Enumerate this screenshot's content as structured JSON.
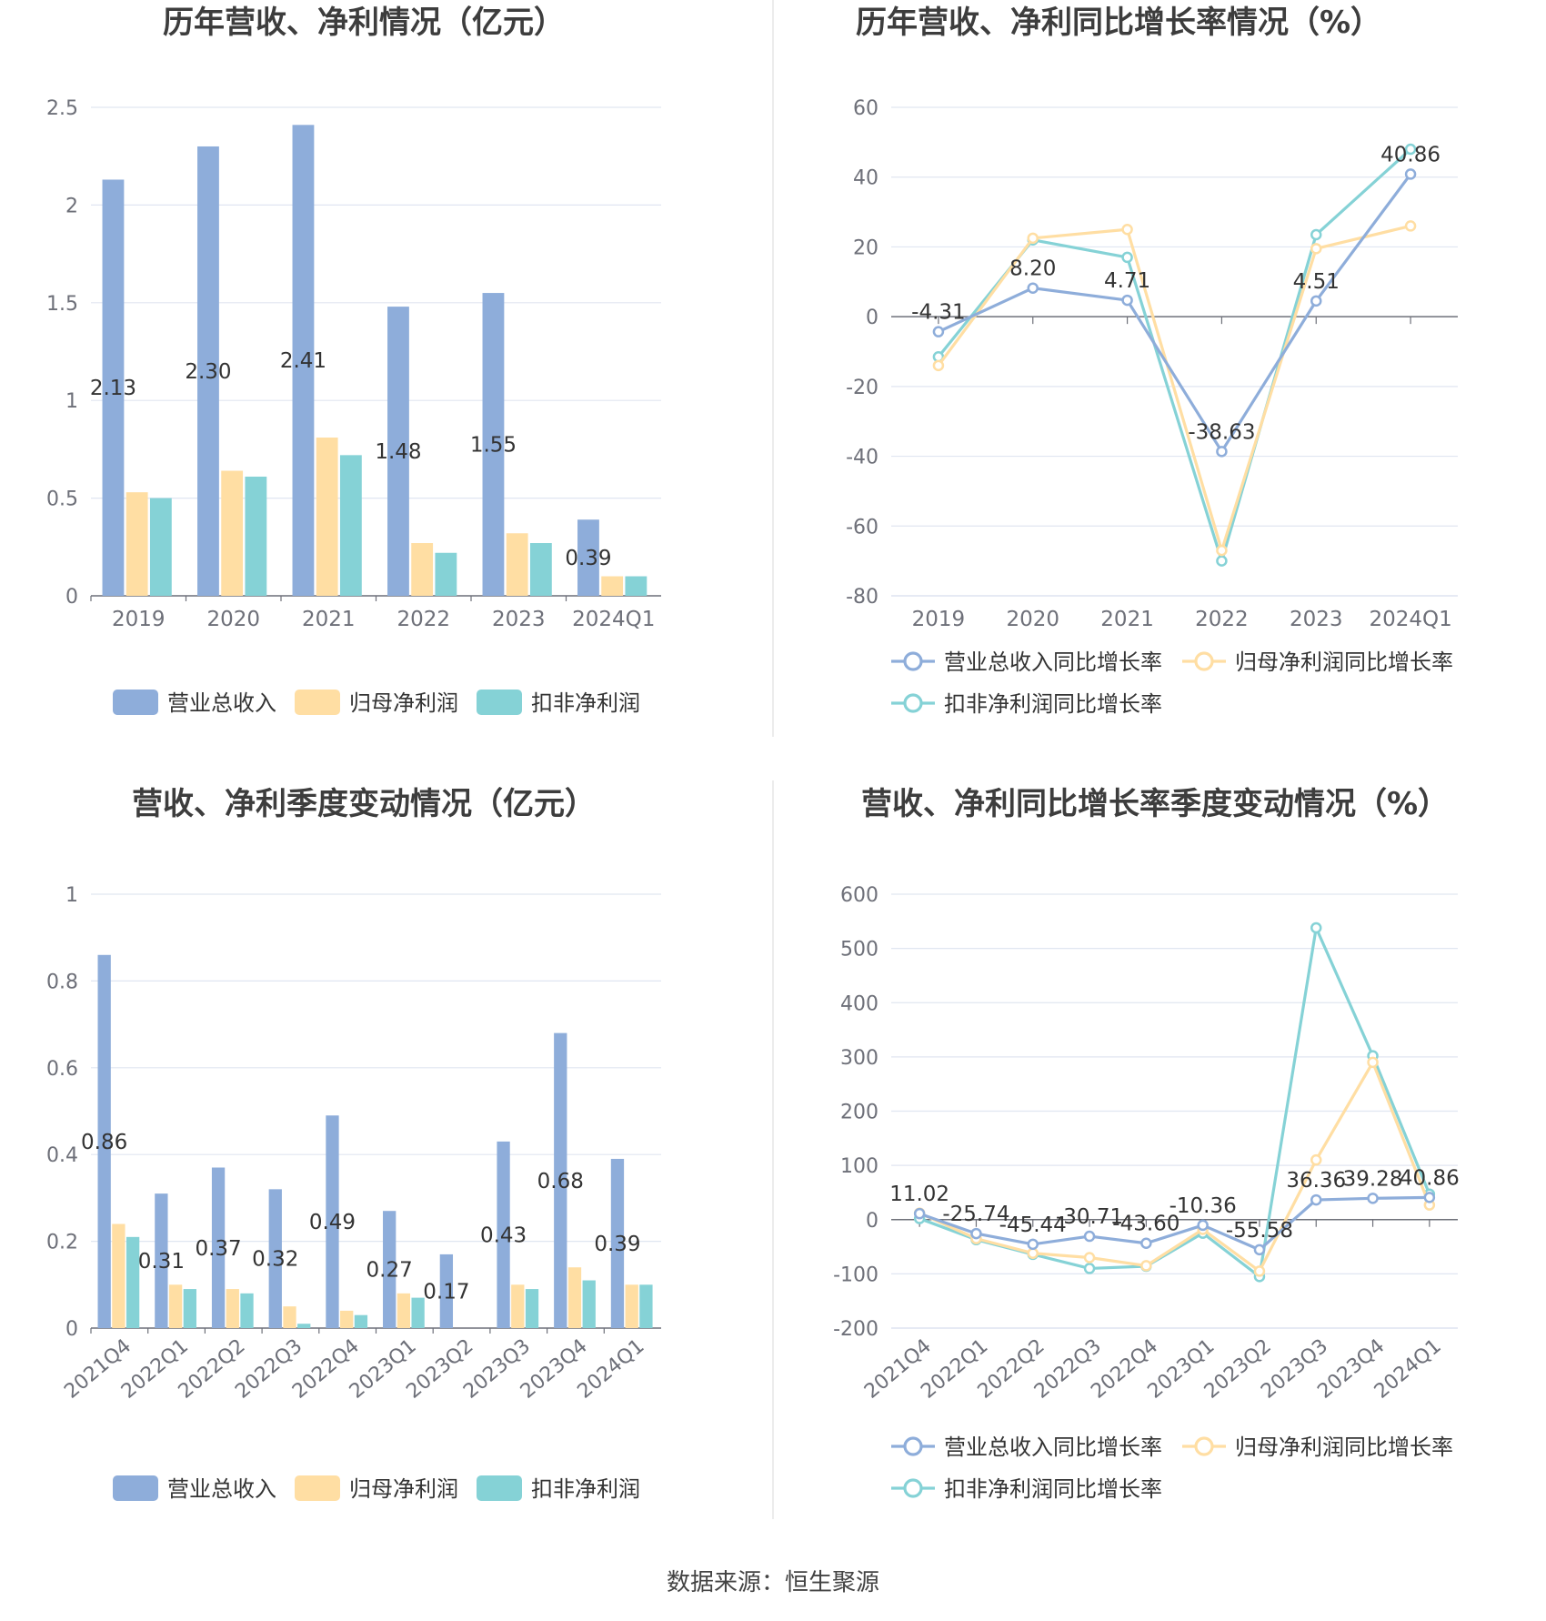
{
  "source_text": "数据来源：恒生聚源",
  "colors": {
    "revenue": "#8eadda",
    "net_profit": "#ffdea3",
    "deducted_profit": "#85d2d6"
  },
  "chart_data": [
    {
      "id": "annual-amounts",
      "type": "bar",
      "title": "历年营收、净利情况（亿元）",
      "categories": [
        "2019",
        "2020",
        "2021",
        "2022",
        "2023",
        "2024Q1"
      ],
      "ylim": [
        0,
        2.5
      ],
      "yticks": [
        "0",
        "0.5",
        "1",
        "1.5",
        "2",
        "2.5"
      ],
      "grid": true,
      "legend_position": "bottom",
      "series": [
        {
          "name": "营业总收入",
          "values": [
            2.13,
            2.3,
            2.41,
            1.48,
            1.55,
            0.39
          ],
          "labels": [
            "2.13",
            "2.30",
            "2.41",
            "1.48",
            "1.55",
            "0.39"
          ]
        },
        {
          "name": "归母净利润",
          "values": [
            0.53,
            0.64,
            0.81,
            0.27,
            0.32,
            0.1
          ]
        },
        {
          "name": "扣非净利润",
          "values": [
            0.5,
            0.61,
            0.72,
            0.22,
            0.27,
            0.1
          ]
        }
      ]
    },
    {
      "id": "annual-growth",
      "type": "line",
      "title": "历年营收、净利同比增长率情况（%）",
      "categories": [
        "2019",
        "2020",
        "2021",
        "2022",
        "2023",
        "2024Q1"
      ],
      "ylim": [
        -80,
        60
      ],
      "yticks": [
        "-80",
        "-60",
        "-40",
        "-20",
        "0",
        "20",
        "40",
        "60"
      ],
      "grid": true,
      "legend_position": "bottom",
      "series": [
        {
          "name": "营业总收入同比增长率",
          "values": [
            -4.31,
            8.2,
            4.71,
            -38.63,
            4.51,
            40.86
          ],
          "labels": [
            "-4.31",
            "8.20",
            "4.71",
            "-38.63",
            "4.51",
            "40.86"
          ]
        },
        {
          "name": "归母净利润同比增长率",
          "values": [
            -14,
            22.5,
            25,
            -67,
            19.5,
            26
          ]
        },
        {
          "name": "扣非净利润同比增长率",
          "values": [
            -11.5,
            22,
            17,
            -70,
            23.5,
            48
          ]
        }
      ]
    },
    {
      "id": "quarterly-amounts",
      "type": "bar",
      "title": "营收、净利季度变动情况（亿元）",
      "categories": [
        "2021Q4",
        "2022Q1",
        "2022Q2",
        "2022Q3",
        "2022Q4",
        "2023Q1",
        "2023Q2",
        "2023Q3",
        "2023Q4",
        "2024Q1"
      ],
      "ylim": [
        0,
        1
      ],
      "yticks": [
        "0",
        "0.2",
        "0.4",
        "0.6",
        "0.8",
        "1"
      ],
      "grid": true,
      "legend_position": "bottom",
      "series": [
        {
          "name": "营业总收入",
          "values": [
            0.86,
            0.31,
            0.37,
            0.32,
            0.49,
            0.27,
            0.17,
            0.43,
            0.68,
            0.39
          ],
          "labels": [
            "0.86",
            "0.31",
            "0.37",
            "0.32",
            "0.49",
            "0.27",
            "0.17",
            "0.43",
            "0.68",
            "0.39"
          ]
        },
        {
          "name": "归母净利润",
          "values": [
            0.24,
            0.1,
            0.09,
            0.05,
            0.04,
            0.08,
            0.0,
            0.1,
            0.14,
            0.1
          ]
        },
        {
          "name": "扣非净利润",
          "values": [
            0.21,
            0.09,
            0.08,
            0.01,
            0.03,
            0.07,
            0.0,
            0.09,
            0.11,
            0.1
          ]
        }
      ]
    },
    {
      "id": "quarterly-growth",
      "type": "line",
      "title": "营收、净利同比增长率季度变动情况（%）",
      "categories": [
        "2021Q4",
        "2022Q1",
        "2022Q2",
        "2022Q3",
        "2022Q4",
        "2023Q1",
        "2023Q2",
        "2023Q3",
        "2023Q4",
        "2024Q1"
      ],
      "ylim": [
        -200,
        600
      ],
      "yticks": [
        "-200",
        "-100",
        "0",
        "100",
        "200",
        "300",
        "400",
        "500",
        "600"
      ],
      "grid": true,
      "legend_position": "bottom",
      "series": [
        {
          "name": "营业总收入同比增长率",
          "values": [
            11.02,
            -25.74,
            -45.44,
            -30.71,
            -43.6,
            -10.36,
            -55.58,
            36.36,
            39.28,
            40.86
          ],
          "labels": [
            "11.02",
            "-25.74",
            "-45.44",
            "-30.71",
            "-43.60",
            "-10.36",
            "-55.58",
            "36.36",
            "39.28",
            "40.86"
          ]
        },
        {
          "name": "归母净利润同比增长率",
          "values": [
            12,
            -35,
            -62,
            -70,
            -85,
            -18,
            -95,
            110,
            290,
            27
          ]
        },
        {
          "name": "扣非净利润同比增长率",
          "values": [
            2,
            -37,
            -64,
            -90,
            -86,
            -25,
            -105,
            538,
            302,
            47
          ]
        }
      ]
    }
  ]
}
